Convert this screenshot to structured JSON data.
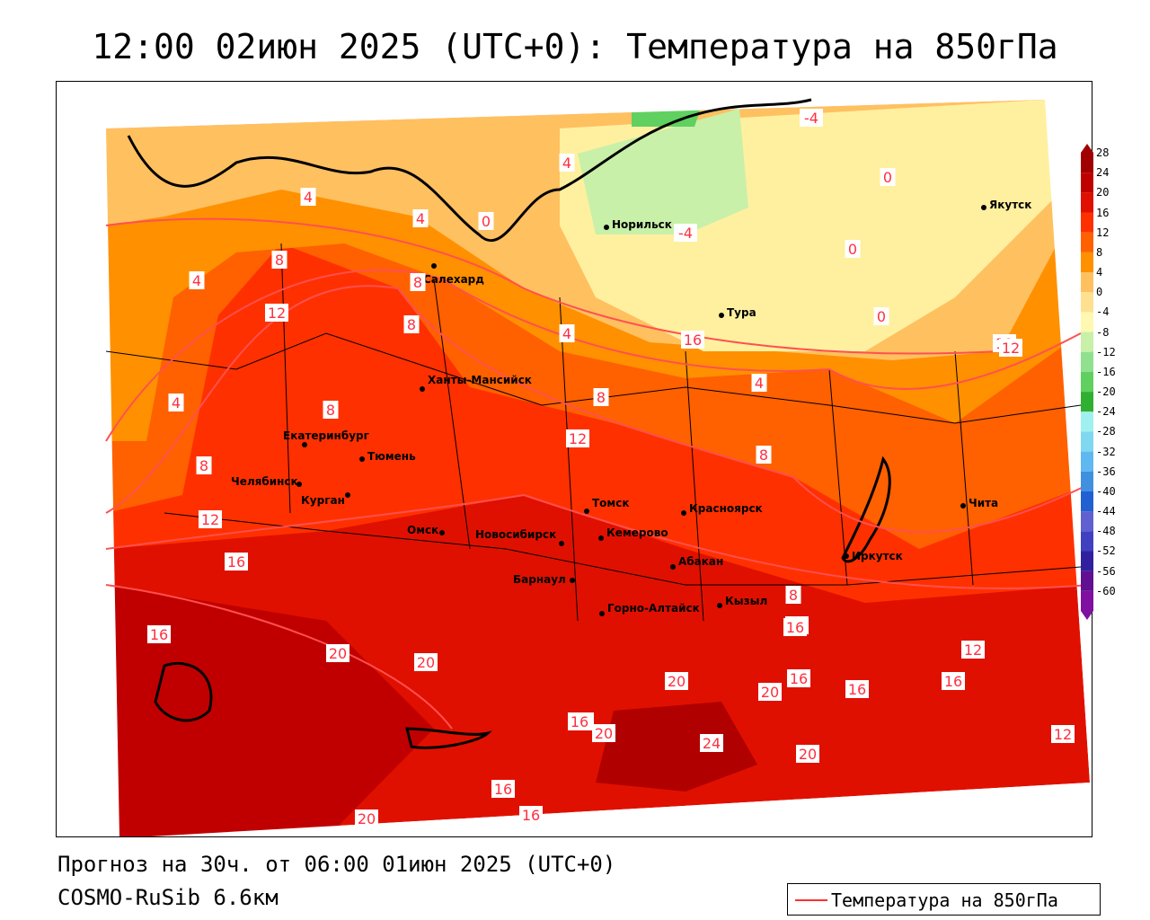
{
  "title": "12:00 02июн 2025 (UTC+0): Температура на 850гПа",
  "footer": {
    "forecast": "Прогноз на 30ч. от 06:00 01июн 2025 (UTC+0)",
    "model": "COSMO-RuSib 6.6км"
  },
  "legend": {
    "label": "Температура на 850гПа",
    "line_color": "#ff3030"
  },
  "colorbar": {
    "levels": [
      "28",
      "24",
      "20",
      "16",
      "12",
      "8",
      "4",
      "0",
      "-4",
      "-8",
      "-12",
      "-16",
      "-20",
      "-24",
      "-28",
      "-32",
      "-36",
      "-40",
      "-44",
      "-48",
      "-52",
      "-56",
      "-60"
    ],
    "colors": [
      "#a00000",
      "#c00000",
      "#e01000",
      "#ff3000",
      "#ff6000",
      "#ff9000",
      "#ffc060",
      "#ffe090",
      "#fff8b0",
      "#c8f0a8",
      "#90e090",
      "#60d060",
      "#30b030",
      "#a0f0f0",
      "#80d8f0",
      "#60b8f0",
      "#4090e0",
      "#2060d0",
      "#6060d0",
      "#4040c0",
      "#3020a0",
      "#601090",
      "#8010a0"
    ]
  },
  "cities": [
    {
      "name": "Норильск"
    },
    {
      "name": "Якутск"
    },
    {
      "name": "Салехард"
    },
    {
      "name": "Тура"
    },
    {
      "name": "Ханты-Мансийск"
    },
    {
      "name": "Екатеринбург"
    },
    {
      "name": "Тюмень"
    },
    {
      "name": "Челябинск"
    },
    {
      "name": "Курган"
    },
    {
      "name": "Омск"
    },
    {
      "name": "Новосибирск"
    },
    {
      "name": "Томск"
    },
    {
      "name": "Кемерово"
    },
    {
      "name": "Красноярск"
    },
    {
      "name": "Абакан"
    },
    {
      "name": "Барнаул"
    },
    {
      "name": "Горно-Алтайск"
    },
    {
      "name": "Кызыл"
    },
    {
      "name": "Иркутск"
    },
    {
      "name": "Чита"
    }
  ],
  "isotherm_labels": [
    "-4",
    "4",
    "0",
    "-4",
    "0",
    "4",
    "0",
    "0",
    "4",
    "8",
    "4",
    "8",
    "12",
    "8",
    "12",
    "4",
    "16",
    "12",
    "4",
    "8",
    "4",
    "8",
    "8",
    "12",
    "8",
    "12",
    "16",
    "8",
    "12",
    "16",
    "20",
    "20",
    "16",
    "16",
    "20",
    "16",
    "20",
    "24",
    "16",
    "20",
    "16",
    "20",
    "16",
    "12",
    "16",
    "16",
    "20",
    "16",
    "12"
  ]
}
